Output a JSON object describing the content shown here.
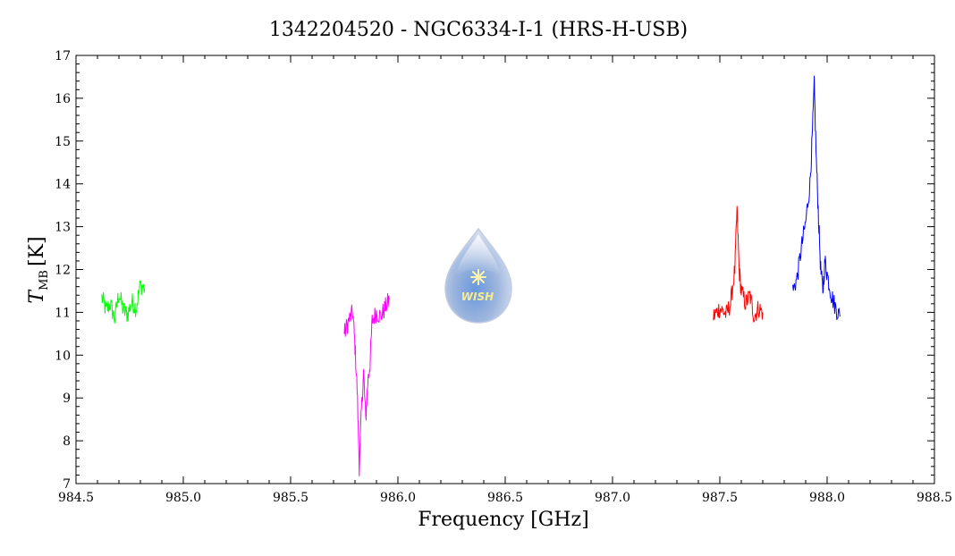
{
  "chart_data": {
    "type": "line",
    "title": "1342204520 - NGC6334-I-1 (HRS-H-USB)",
    "xlabel": "Frequency [GHz]",
    "ylabel": {
      "symbol": "T",
      "subscript": "MB",
      "unit": "[K]"
    },
    "xlim": [
      984.5,
      988.5
    ],
    "ylim": [
      7,
      17
    ],
    "x_ticks": [
      "984.5",
      "985.0",
      "985.5",
      "986.0",
      "986.5",
      "987.0",
      "987.5",
      "988.0",
      "988.5"
    ],
    "y_ticks": [
      "7",
      "8",
      "9",
      "10",
      "11",
      "12",
      "13",
      "14",
      "15",
      "16",
      "17"
    ],
    "grid": false,
    "logo": {
      "text": "WISH",
      "icon": "wish-water-drop-logo"
    },
    "series": [
      {
        "color": "#00ff00",
        "x": [
          984.62,
          984.64,
          984.66,
          984.68,
          984.7,
          984.72,
          984.74,
          984.76,
          984.78,
          984.8,
          984.82
        ],
        "y": [
          11.35,
          11.05,
          11.2,
          10.85,
          11.45,
          11.05,
          10.95,
          11.25,
          11.1,
          11.65,
          11.55
        ]
      },
      {
        "color": "#ff00ff",
        "x": [
          985.75,
          985.77,
          985.79,
          985.8,
          985.81,
          985.82,
          985.83,
          985.84,
          985.85,
          985.86,
          985.87,
          985.88,
          985.9,
          985.92,
          985.94,
          985.96
        ],
        "y": [
          10.5,
          10.8,
          11.0,
          10.2,
          9.2,
          7.4,
          8.7,
          9.6,
          8.5,
          9.4,
          9.8,
          10.8,
          11.0,
          10.9,
          11.1,
          11.3
        ]
      },
      {
        "color": "#ff0000",
        "x": [
          987.47,
          987.5,
          987.53,
          987.55,
          987.57,
          987.58,
          987.59,
          987.6,
          987.62,
          987.64,
          987.66,
          987.68,
          987.7
        ],
        "y": [
          10.9,
          11.1,
          10.95,
          11.2,
          12.0,
          13.4,
          12.0,
          11.5,
          11.2,
          11.4,
          10.9,
          11.1,
          11.0
        ]
      },
      {
        "color": "#0000ff",
        "x": [
          987.84,
          987.86,
          987.88,
          987.9,
          987.92,
          987.93,
          987.94,
          987.95,
          987.96,
          987.97,
          987.98,
          987.99,
          988.0,
          988.02,
          988.04,
          988.06
        ],
        "y": [
          11.5,
          11.8,
          12.5,
          13.1,
          14.0,
          15.0,
          16.3,
          14.5,
          13.2,
          12.0,
          11.5,
          12.2,
          11.9,
          11.4,
          11.1,
          10.9
        ]
      }
    ]
  }
}
